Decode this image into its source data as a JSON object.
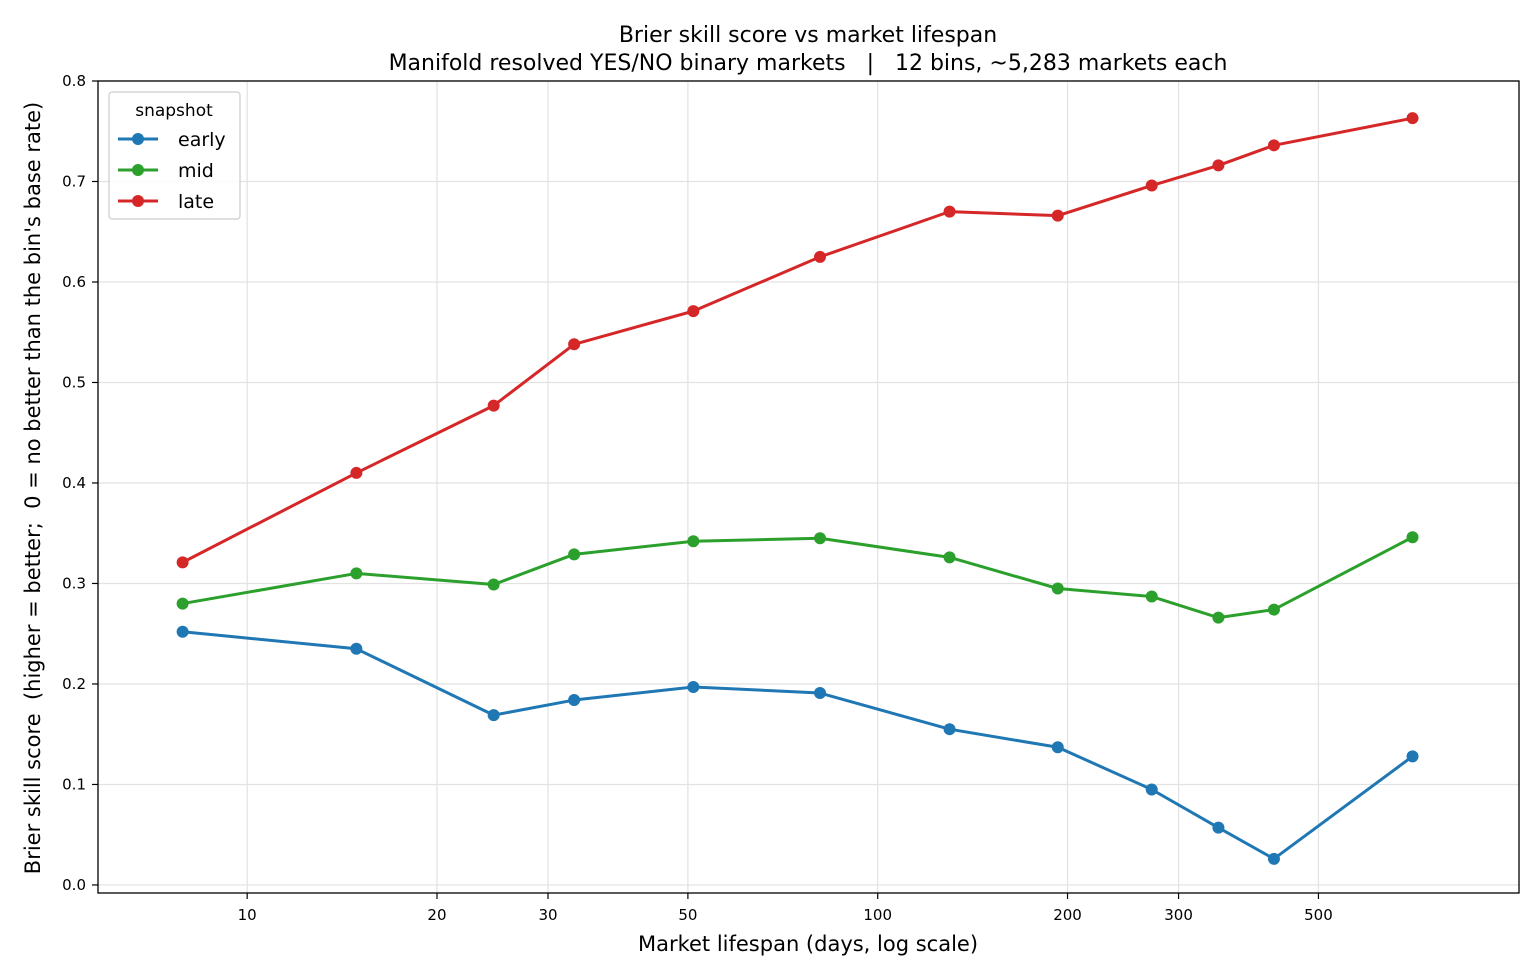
{
  "chart_data": {
    "type": "line",
    "title": "Brier skill score vs market lifespan",
    "subtitle": "Manifold resolved YES/NO binary markets   |   12 bins, ~5,283 markets each",
    "xlabel": "Market lifespan (days, log scale)",
    "ylabel": "Brier skill score  (higher = better;  0 = no better than the bin's base rate)",
    "xscale": "log",
    "xlim": [
      5.8,
      1040
    ],
    "ylim": [
      -0.008,
      0.8
    ],
    "xticks": [
      10,
      20,
      30,
      50,
      100,
      200,
      300,
      500
    ],
    "xtick_labels": [
      "10",
      "20",
      "30",
      "50",
      "100",
      "200",
      "300",
      "500"
    ],
    "yticks": [
      0.0,
      0.1,
      0.2,
      0.3,
      0.4,
      0.5,
      0.6,
      0.7,
      0.8
    ],
    "ytick_labels": [
      "0.0",
      "0.1",
      "0.2",
      "0.3",
      "0.4",
      "0.5",
      "0.6",
      "0.7",
      "0.8"
    ],
    "grid": true,
    "legend": {
      "title": "snapshot",
      "placement": "top-left"
    },
    "x": [
      7.9,
      14.9,
      24.6,
      33.0,
      51.0,
      81.0,
      130.0,
      193.0,
      272.0,
      347.0,
      425.0,
      705.0
    ],
    "series": [
      {
        "name": "early",
        "color": "#1f77b4",
        "values": [
          0.252,
          0.235,
          0.169,
          0.184,
          0.197,
          0.191,
          0.155,
          0.137,
          0.095,
          0.057,
          0.026,
          0.128
        ]
      },
      {
        "name": "mid",
        "color": "#2ca02c",
        "values": [
          0.28,
          0.31,
          0.299,
          0.329,
          0.342,
          0.345,
          0.326,
          0.295,
          0.287,
          0.266,
          0.274,
          0.346
        ]
      },
      {
        "name": "late",
        "color": "#d62728",
        "values": [
          0.321,
          0.41,
          0.477,
          0.538,
          0.571,
          0.625,
          0.67,
          0.666,
          0.696,
          0.716,
          0.736,
          0.763
        ]
      }
    ]
  }
}
